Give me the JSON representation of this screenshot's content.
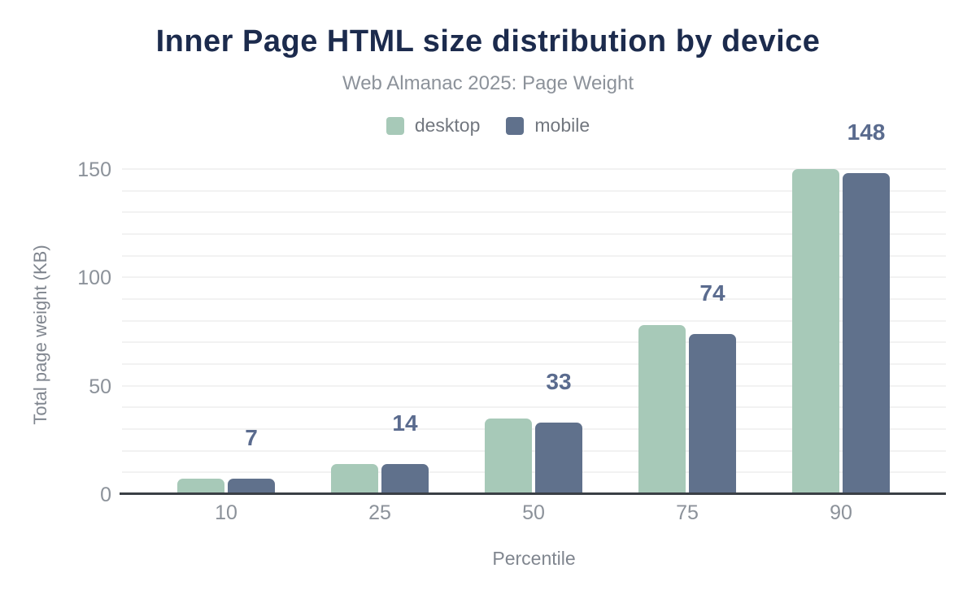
{
  "colors": {
    "background": "#ffffff",
    "title": "#1c2b4d",
    "subtitle": "#8c929a",
    "legend_text": "#72777f",
    "tick_label": "#8c929a",
    "axis_title": "#80868f",
    "data_label": "#5a6b8e",
    "gridline": "#f2f2f2",
    "axis_line": "#3a3f45",
    "desktop": "#a7c9b8",
    "mobile": "#60718c"
  },
  "chart_data": {
    "type": "bar",
    "title": "Inner Page HTML size distribution by device",
    "subtitle": "Web Almanac 2025: Page Weight",
    "categories": [
      "10",
      "25",
      "50",
      "75",
      "90"
    ],
    "series": [
      {
        "name": "desktop",
        "color": "#a7c9b8",
        "values": [
          7,
          14,
          35,
          78,
          150
        ]
      },
      {
        "name": "mobile",
        "color": "#60718c",
        "values": [
          7,
          14,
          33,
          74,
          148
        ]
      }
    ],
    "data_labels": {
      "labeled_series": "mobile",
      "values": [
        "7",
        "14",
        "33",
        "74",
        "148"
      ]
    },
    "xlabel": "Percentile",
    "ylabel": "Total page weight (KB)",
    "yticks": [
      "0",
      "50",
      "100",
      "150"
    ],
    "ylim": [
      0,
      150
    ],
    "grid_interval": 10,
    "grid_on": true,
    "legend_position": "top-center"
  }
}
